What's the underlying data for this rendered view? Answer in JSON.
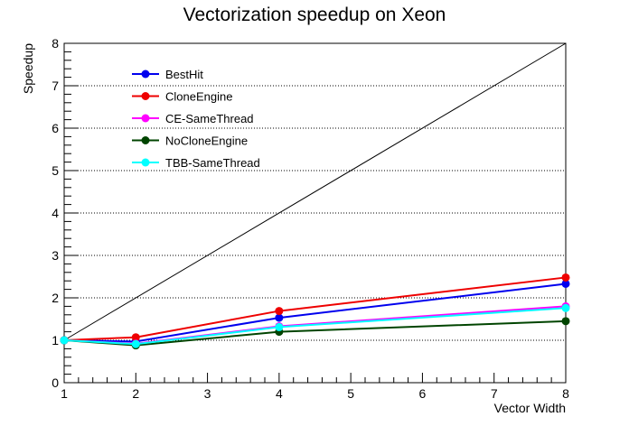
{
  "chart_data": {
    "type": "line",
    "title": "Vectorization speedup on Xeon",
    "xlabel": "Vector Width",
    "ylabel": "Speedup",
    "xlim": [
      1,
      8
    ],
    "ylim": [
      0,
      8
    ],
    "xticks": [
      "1",
      "2",
      "3",
      "4",
      "5",
      "6",
      "7",
      "8"
    ],
    "yticks": [
      "0",
      "1",
      "2",
      "3",
      "4",
      "5",
      "6",
      "7",
      "8"
    ],
    "grid": "horizontal dotted",
    "legend_position": "top-left",
    "reference_line": {
      "x": [
        1,
        8
      ],
      "y": [
        1,
        8
      ],
      "color": "#000000"
    },
    "series": [
      {
        "name": "BestHit",
        "color": "#0000ee",
        "x": [
          1,
          2,
          4,
          8
        ],
        "y": [
          1.0,
          0.97,
          1.53,
          2.33
        ]
      },
      {
        "name": "CloneEngine",
        "color": "#ee0000",
        "x": [
          1,
          2,
          4,
          8
        ],
        "y": [
          1.0,
          1.07,
          1.69,
          2.48
        ]
      },
      {
        "name": "CE-SameThread",
        "color": "#ff00ff",
        "x": [
          1,
          2,
          4,
          8
        ],
        "y": [
          1.0,
          0.92,
          1.33,
          1.8
        ]
      },
      {
        "name": "NoCloneEngine",
        "color": "#004400",
        "x": [
          1,
          2,
          4,
          8
        ],
        "y": [
          1.0,
          0.88,
          1.2,
          1.45
        ]
      },
      {
        "name": "TBB-SameThread",
        "color": "#00ffff",
        "x": [
          1,
          2,
          4,
          8
        ],
        "y": [
          1.0,
          0.91,
          1.31,
          1.76
        ]
      }
    ]
  }
}
